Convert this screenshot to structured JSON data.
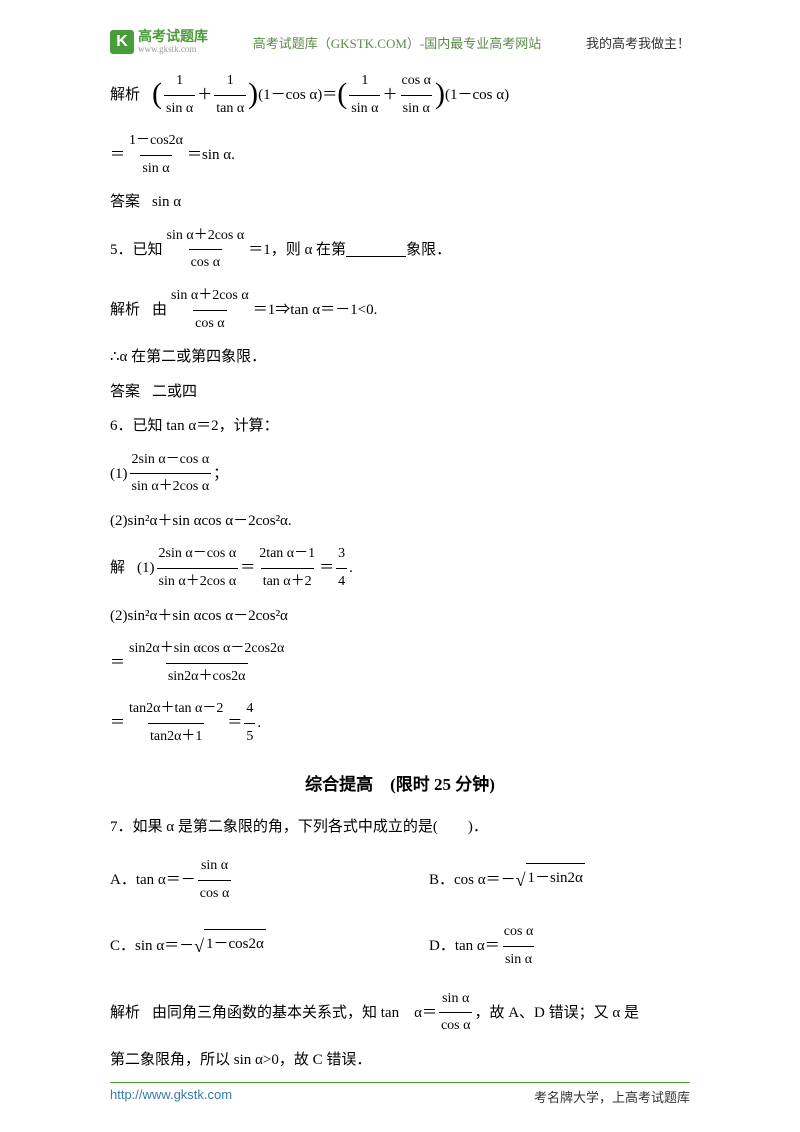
{
  "header": {
    "logo_main": "高考试题库",
    "logo_url": "www.gkstk.com",
    "center": "高考试题库（GKSTK.COM）-国内最专业高考网站",
    "right": "我的高考我做主！"
  },
  "q4": {
    "analysis_label": "解析",
    "step1_l_num1": "1",
    "step1_l_den1": "sin α",
    "step1_l_num2": "1",
    "step1_l_den2": "tan α",
    "step1_l_tail": "(1－cos α)＝",
    "step1_r_num1": "1",
    "step1_r_den1": "sin α",
    "step1_r_num2": "cos α",
    "step1_r_den2": "sin α",
    "step1_r_tail": "(1－cos α)",
    "step2_eq": "＝",
    "step2_num": "1－cos2α",
    "step2_den": "sin α",
    "step2_tail": "＝sin α.",
    "answer_label": "答案",
    "answer": "sin α"
  },
  "q5": {
    "num_label": "5．已知",
    "frac_num": "sin α＋2cos α",
    "frac_den": "cos α",
    "tail": "＝1，则 α 在第",
    "tail2": "象限．",
    "analysis_label": "解析",
    "analysis_pre": "由",
    "frac2_num": "sin α＋2cos α",
    "frac2_den": "cos α",
    "analysis_post": "＝1⇒tan α＝－1<0.",
    "conclusion": "∴α 在第二或第四象限．",
    "answer_label": "答案",
    "answer": "二或四"
  },
  "q6": {
    "title": "6．已知 tan α＝2，计算：",
    "p1_pre": "(1)",
    "p1_num": "2sin α－cos α",
    "p1_den": "sin α＋2cos α",
    "p1_post": "；",
    "p2": "(2)sin²α＋sin αcos α－2cos²α.",
    "sol_label": "解",
    "sol1_pre": "(1)",
    "s1a_num": "2sin α－cos α",
    "s1a_den": "sin α＋2cos α",
    "s1_eq": "＝",
    "s1b_num": "2tan α－1",
    "s1b_den": "tan α＋2",
    "s1c_num": "3",
    "s1c_den": "4",
    "s1c_post": ".",
    "s2a": "(2)sin²α＋sin αcos α－2cos²α",
    "s2b_eq": "＝",
    "s2b_num": "sin2α＋sin αcos α－2cos2α",
    "s2b_den": "sin2α＋cos2α",
    "s2c_eq": "＝",
    "s2c_num": "tan2α＋tan α－2",
    "s2c_den": "tan2α＋1",
    "s2c2_num": "4",
    "s2c2_den": "5",
    "s2c_post": "."
  },
  "section_title": "综合提高　(限时 25 分钟)",
  "q7": {
    "title": "7．如果 α 是第二象限的角，下列各式中成立的是(　　)．",
    "A_pre": "A．tan α＝－",
    "A_num": "sin α",
    "A_den": "cos α",
    "B_pre": "B．cos α＝－",
    "B_rad": "1－sin2α",
    "C_pre": "C．sin α＝－",
    "C_rad": "1－cos2α",
    "D_pre": "D．tan α＝",
    "D_num": "cos α",
    "D_den": "sin α",
    "analysis_label": "解析",
    "ana1": "由同角三角函数的基本关系式，知 tan　α＝",
    "ana_num": "sin α",
    "ana_den": "cos α",
    "ana2": "，故 A、D 错误；又 α 是",
    "ana3": "第二象限角，所以 sin α>0，故 C 错误．"
  },
  "footer": {
    "left": "http://www.gkstk.com",
    "right": "考名牌大学，上高考试题库"
  }
}
